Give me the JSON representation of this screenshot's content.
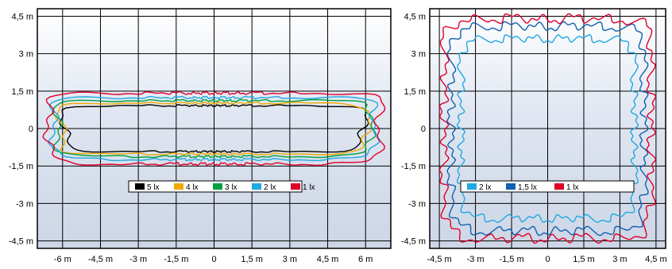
{
  "chart_data": [
    {
      "type": "contour",
      "xlim": [
        -7.0,
        7.0
      ],
      "ylim": [
        -4.8,
        4.8
      ],
      "x_ticks": [
        -6,
        -4.5,
        -3,
        -1.5,
        0,
        1.5,
        3,
        4.5,
        6
      ],
      "x_tick_labels": [
        "-6 m",
        "-4,5 m",
        "-3 m",
        "-1,5 m",
        "0",
        "1,5 m",
        "3 m",
        "4,5 m",
        "6 m"
      ],
      "y_ticks": [
        4.5,
        3,
        1.5,
        0,
        -1.5,
        -3,
        -4.5
      ],
      "y_tick_labels": [
        "4,5 m",
        "3 m",
        "1,5 m",
        "0",
        "-1,5 m",
        "-3 m",
        "-4,5 m"
      ],
      "grid": true,
      "legend_position": "lower-center",
      "series": [
        {
          "name": "5 lx",
          "color": "#000000",
          "half_width": 5.9,
          "half_height": 0.92,
          "wave": 0.05
        },
        {
          "name": "4 lx",
          "color": "#f0a800",
          "half_width": 6.05,
          "half_height": 1.02,
          "wave": 0.05
        },
        {
          "name": "3 lx",
          "color": "#00a040",
          "half_width": 6.2,
          "half_height": 1.12,
          "wave": 0.05
        },
        {
          "name": "2 lx",
          "color": "#20a8e0",
          "half_width": 6.35,
          "half_height": 1.24,
          "wave": 0.05
        },
        {
          "name": "1 lx",
          "color": "#e0002a",
          "half_width": 6.55,
          "half_height": 1.42,
          "wave": 0.05
        }
      ]
    },
    {
      "type": "contour",
      "xlim": [
        -4.9,
        4.9
      ],
      "ylim": [
        -4.8,
        4.8
      ],
      "x_ticks": [
        -4.5,
        -3,
        -1.5,
        0,
        1.5,
        3,
        4.5
      ],
      "x_tick_labels": [
        "-4,5 m",
        "-3 m",
        "-1,5 m",
        "0",
        "1,5 m",
        "3 m",
        "4,5 m"
      ],
      "y_ticks": [
        4.5,
        3,
        1.5,
        0,
        -1.5,
        -3,
        -4.5
      ],
      "y_tick_labels": [
        "4,5 m",
        "3 m",
        "1,5 m",
        "0",
        "-1,5 m",
        "-3 m",
        "-4,5 m"
      ],
      "grid": true,
      "legend_position": "lower-center",
      "series": [
        {
          "name": "2 lx",
          "color": "#20a8e0",
          "half_width": 3.6,
          "half_height": 3.6,
          "wave": 0.06
        },
        {
          "name": "1,5 lx",
          "color": "#1060b0",
          "half_width": 4.0,
          "half_height": 4.1,
          "wave": 0.06
        },
        {
          "name": "1 lx",
          "color": "#e0002a",
          "half_width": 4.3,
          "half_height": 4.4,
          "wave": 0.06
        }
      ]
    }
  ]
}
